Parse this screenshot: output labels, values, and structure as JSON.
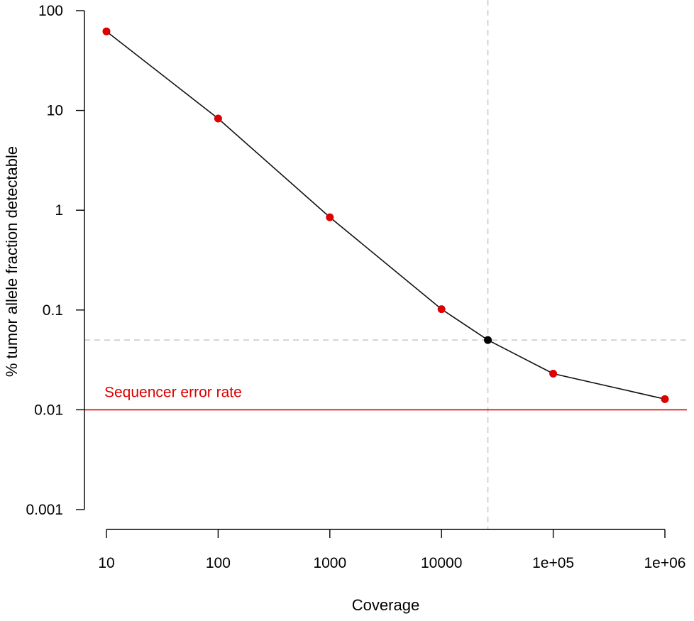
{
  "chart_data": {
    "type": "line",
    "title": "",
    "xlabel": "Coverage",
    "ylabel": "% tumor allele fraction detectable",
    "x_scale": "log",
    "y_scale": "log",
    "x_ticks": [
      10,
      100,
      1000,
      10000,
      100000,
      1000000
    ],
    "x_tick_labels": [
      "10",
      "100",
      "1000",
      "10000",
      "1e+05",
      "1e+06"
    ],
    "y_ticks": [
      0.001,
      0.01,
      0.1,
      1,
      10,
      100
    ],
    "y_tick_labels": [
      "0.001",
      "0.01",
      "0.1",
      "1",
      "10",
      "100"
    ],
    "ylim": [
      0.001,
      100
    ],
    "xlim": [
      10,
      1000000
    ],
    "grid": false,
    "series": [
      {
        "color": "#dd0000",
        "points": [
          {
            "x": 10,
            "y": 62
          },
          {
            "x": 100,
            "y": 8.3
          },
          {
            "x": 1000,
            "y": 0.85
          },
          {
            "x": 10000,
            "y": 0.102
          },
          {
            "x": 100000,
            "y": 0.023
          },
          {
            "x": 1000000,
            "y": 0.0128
          }
        ]
      }
    ],
    "highlight_point": {
      "x": 26000,
      "y": 0.05,
      "color": "#000000"
    },
    "reference_lines": {
      "vertical_x": 26000,
      "horizontal_y": 0.05,
      "style": "dashed",
      "color": "#c8c8c8"
    },
    "error_rate_line": {
      "y": 0.01,
      "color": "#dd0000",
      "label": "Sequencer error rate"
    }
  }
}
